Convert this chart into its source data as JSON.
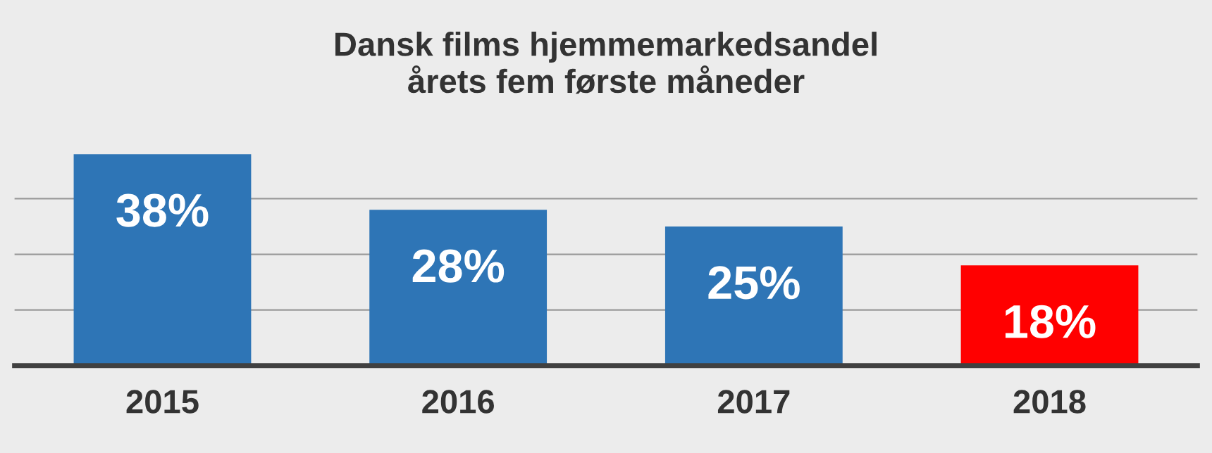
{
  "chart_data": {
    "type": "bar",
    "title": "Dansk films hjemmemarkedsandel\nårets fem første måneder",
    "categories": [
      "2015",
      "2016",
      "2017",
      "2018"
    ],
    "values": [
      38,
      28,
      25,
      18
    ],
    "colors": [
      "#2e75b6",
      "#2e75b6",
      "#2e75b6",
      "#ff0000"
    ],
    "value_labels": [
      "38%",
      "28%",
      "25%",
      "18%"
    ],
    "yticks": [
      {
        "value": 10,
        "label": null
      },
      {
        "value": 20,
        "label": null
      },
      {
        "value": 30,
        "label": null
      }
    ],
    "grid": "y",
    "tick_labels": "x"
  }
}
